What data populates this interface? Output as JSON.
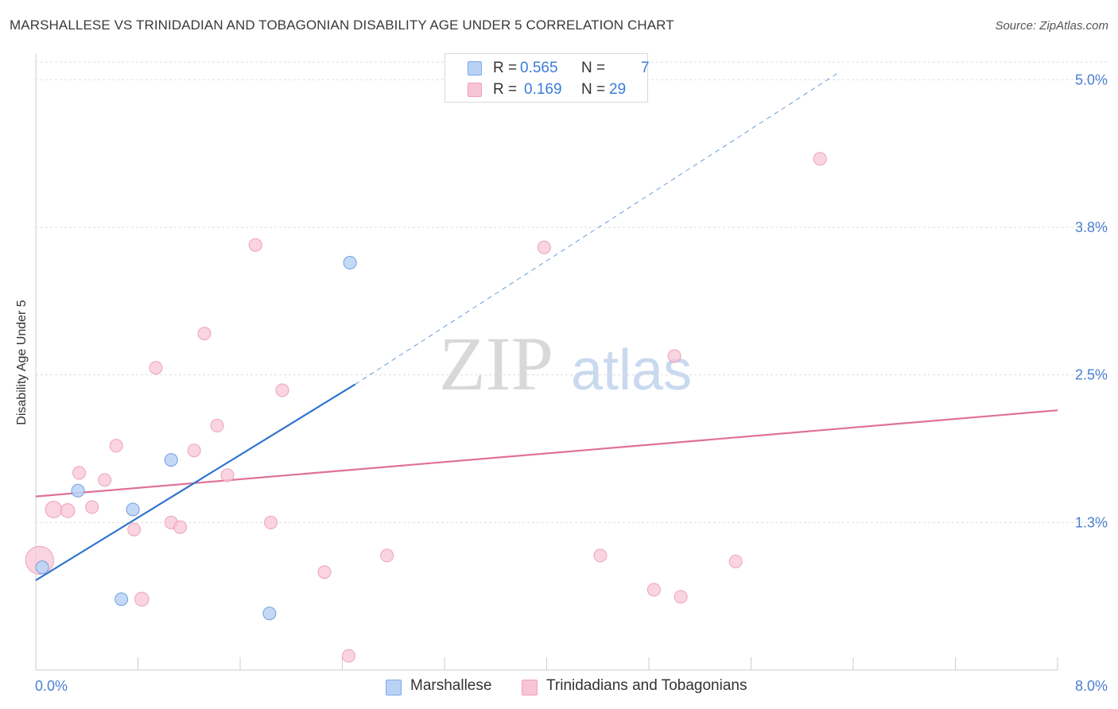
{
  "header": {
    "title": "MARSHALLESE VS TRINIDADIAN AND TOBAGONIAN DISABILITY AGE UNDER 5 CORRELATION CHART",
    "source": "Source: ZipAtlas.com"
  },
  "watermark": {
    "zip": "ZIP",
    "atlas": "atlas"
  },
  "colors": {
    "marshallese": "#2f74d0",
    "marshallese_fill": "#b8d2f5",
    "trinidadian": "#e0709a",
    "trinidadian_fill": "#f8c5d6",
    "tick_label": "#4a7fd0",
    "grid": "#dddddd"
  },
  "legend_top": {
    "rows": [
      {
        "r_label": "R =",
        "r_value": "0.565",
        "n_label": "N =",
        "n_value": "7"
      },
      {
        "r_label": "R =",
        "r_value": "0.169",
        "n_label": "N =",
        "n_value": "29"
      }
    ]
  },
  "legend_bottom": {
    "items": [
      {
        "label": "Marshallese"
      },
      {
        "label": "Trinidadians and Tobagonians"
      }
    ]
  },
  "chart_data": {
    "type": "scatter",
    "title": "MARSHALLESE VS TRINIDADIAN AND TOBAGONIAN DISABILITY AGE UNDER 5 CORRELATION CHART",
    "xlabel": "",
    "ylabel": "Disability Age Under 5",
    "xlim": [
      0.0,
      8.0
    ],
    "ylim": [
      0.0,
      5.15
    ],
    "x_tick_labels": [
      {
        "value": 0.0,
        "label": "0.0%"
      },
      {
        "value": 8.0,
        "label": "8.0%"
      }
    ],
    "y_tick_labels": [
      {
        "value": 1.25,
        "label": "1.3%"
      },
      {
        "value": 2.5,
        "label": "2.5%"
      },
      {
        "value": 3.75,
        "label": "3.8%"
      },
      {
        "value": 5.0,
        "label": "5.0%"
      }
    ],
    "grid": true,
    "legend_position": "top-center",
    "series": [
      {
        "name": "Marshallese",
        "R": 0.565,
        "N": 7,
        "points": [
          {
            "x": 0.05,
            "y": 0.87,
            "s": 1
          },
          {
            "x": 0.33,
            "y": 1.52,
            "s": 1
          },
          {
            "x": 0.76,
            "y": 1.36,
            "s": 1
          },
          {
            "x": 0.67,
            "y": 0.6,
            "s": 1
          },
          {
            "x": 1.06,
            "y": 1.78,
            "s": 1
          },
          {
            "x": 1.83,
            "y": 0.48,
            "s": 1
          },
          {
            "x": 2.46,
            "y": 3.45,
            "s": 1
          }
        ],
        "trend": {
          "x0": 0.0,
          "y0": 0.76,
          "x1": 2.5,
          "y1": 2.42
        },
        "trend_extension": {
          "x0": 2.5,
          "y0": 2.42,
          "x1": 6.3,
          "y1": 5.07
        }
      },
      {
        "name": "Trinidadians and Tobagonians",
        "R": 0.169,
        "N": 29,
        "points": [
          {
            "x": 0.03,
            "y": 0.93,
            "s": 2.2
          },
          {
            "x": 0.14,
            "y": 1.36,
            "s": 1.3
          },
          {
            "x": 0.25,
            "y": 1.35,
            "s": 1.1
          },
          {
            "x": 0.34,
            "y": 1.67,
            "s": 1
          },
          {
            "x": 0.44,
            "y": 1.38,
            "s": 1
          },
          {
            "x": 0.54,
            "y": 1.61,
            "s": 1
          },
          {
            "x": 0.63,
            "y": 1.9,
            "s": 1
          },
          {
            "x": 0.77,
            "y": 1.19,
            "s": 1
          },
          {
            "x": 0.83,
            "y": 0.6,
            "s": 1.1
          },
          {
            "x": 0.94,
            "y": 2.56,
            "s": 1
          },
          {
            "x": 1.06,
            "y": 1.25,
            "s": 1
          },
          {
            "x": 1.13,
            "y": 1.21,
            "s": 1
          },
          {
            "x": 1.24,
            "y": 1.86,
            "s": 1
          },
          {
            "x": 1.32,
            "y": 2.85,
            "s": 1
          },
          {
            "x": 1.42,
            "y": 2.07,
            "s": 1
          },
          {
            "x": 1.5,
            "y": 1.65,
            "s": 1
          },
          {
            "x": 1.72,
            "y": 3.6,
            "s": 1
          },
          {
            "x": 1.84,
            "y": 1.25,
            "s": 1
          },
          {
            "x": 1.93,
            "y": 2.37,
            "s": 1
          },
          {
            "x": 2.26,
            "y": 0.83,
            "s": 1
          },
          {
            "x": 2.45,
            "y": 0.12,
            "s": 1
          },
          {
            "x": 2.75,
            "y": 0.97,
            "s": 1
          },
          {
            "x": 3.98,
            "y": 3.58,
            "s": 1
          },
          {
            "x": 4.42,
            "y": 0.97,
            "s": 1
          },
          {
            "x": 4.84,
            "y": 0.68,
            "s": 1
          },
          {
            "x": 5.0,
            "y": 2.66,
            "s": 1
          },
          {
            "x": 5.05,
            "y": 0.62,
            "s": 1
          },
          {
            "x": 5.48,
            "y": 0.92,
            "s": 1
          },
          {
            "x": 6.14,
            "y": 4.33,
            "s": 1
          }
        ],
        "trend": {
          "x0": 0.0,
          "y0": 1.47,
          "x1": 8.0,
          "y1": 2.2
        }
      }
    ]
  }
}
